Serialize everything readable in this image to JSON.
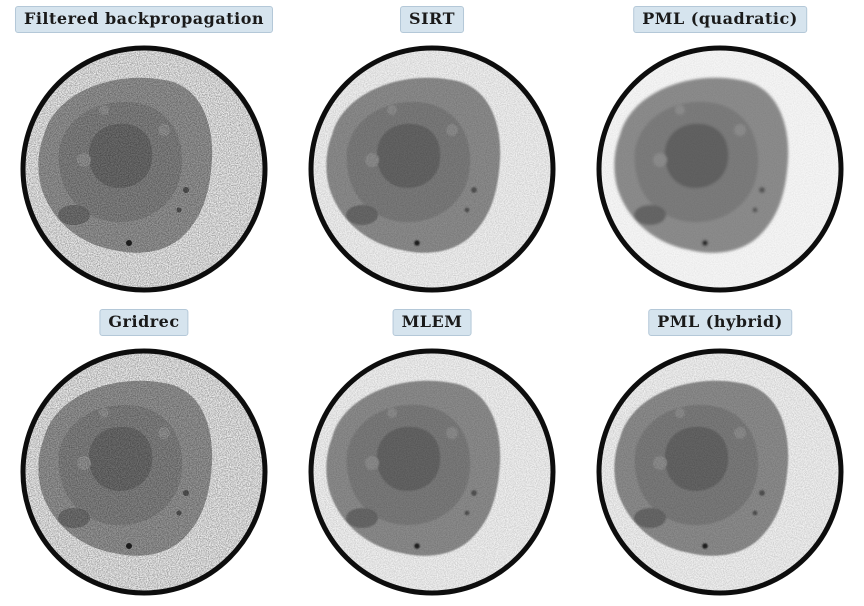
{
  "panels": [
    {
      "label": "Filtered backpropagation",
      "style": "noisy"
    },
    {
      "label": "SIRT",
      "style": "smooth"
    },
    {
      "label": "PML (quadratic)",
      "style": "smoothest"
    },
    {
      "label": "Gridrec",
      "style": "noisy"
    },
    {
      "label": "MLEM",
      "style": "smooth"
    },
    {
      "label": "PML (hybrid)",
      "style": "smooth"
    }
  ]
}
